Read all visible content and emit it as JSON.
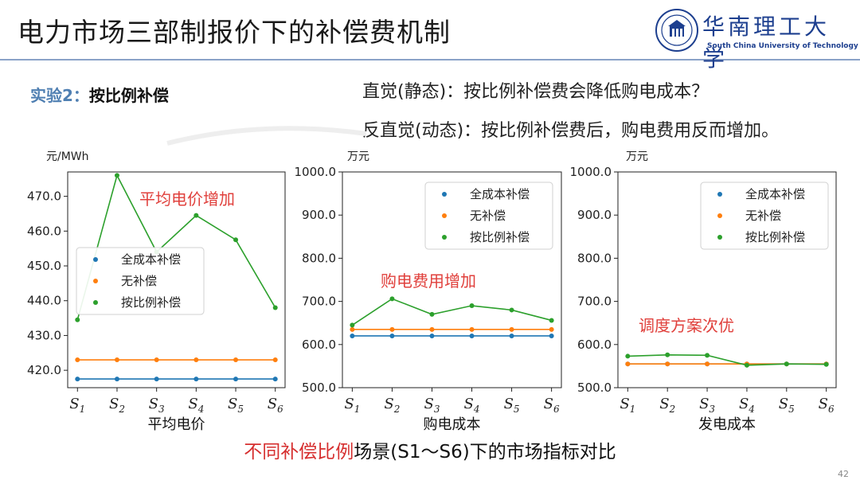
{
  "header": {
    "title": "电力市场三部制报价下的补偿费机制",
    "logo_cn": "华南理工大学",
    "logo_en": "South China University of Technology"
  },
  "experiment": {
    "label": "实验2：",
    "value": "按比例补偿"
  },
  "notes": [
    "直觉(静态)：按比例补偿费会降低购电成本？",
    "反直觉(动态)：按比例补偿费后，购电费用反而增加。"
  ],
  "caption": {
    "highlight": "不同补偿比例",
    "rest": "场景(S1～S6)下的市场指标对比"
  },
  "page_number": "42",
  "colors": {
    "series1": "#1f77b4",
    "series2": "#ff7f0e",
    "series3": "#2ca02c",
    "annotation": "#e0403c"
  },
  "chart_data": [
    {
      "type": "line",
      "unit": "元/MWh",
      "xlabel": "平均电价",
      "x_ticks": [
        "S1",
        "S2",
        "S3",
        "S4",
        "S5",
        "S6"
      ],
      "ylim": [
        415,
        477
      ],
      "y_ticks": [
        420,
        430,
        440,
        450,
        460,
        470
      ],
      "y_tick_labels": [
        "420.0",
        "430.0",
        "440.0",
        "450.0",
        "460.0",
        "470.0"
      ],
      "legend_position": "center-left",
      "annotation": "平均电价增加",
      "series": [
        {
          "name": "全成本补偿",
          "values": [
            417.5,
            417.5,
            417.5,
            417.5,
            417.5,
            417.5
          ]
        },
        {
          "name": "无补偿",
          "values": [
            423,
            423,
            423,
            423,
            423,
            423
          ]
        },
        {
          "name": "按比例补偿",
          "values": [
            434.5,
            476,
            454,
            464.5,
            457.5,
            438
          ]
        }
      ]
    },
    {
      "type": "line",
      "unit": "万元",
      "xlabel": "购电成本",
      "x_ticks": [
        "S1",
        "S2",
        "S3",
        "S4",
        "S5",
        "S6"
      ],
      "ylim": [
        500,
        1000
      ],
      "y_ticks": [
        500,
        600,
        700,
        800,
        900,
        1000
      ],
      "y_tick_labels": [
        "500.0",
        "600.0",
        "700.0",
        "800.0",
        "900.0",
        "1000.0"
      ],
      "legend_position": "top-right",
      "annotation": "购电费用增加",
      "series": [
        {
          "name": "全成本补偿",
          "values": [
            620,
            620,
            620,
            620,
            620,
            620
          ]
        },
        {
          "name": "无补偿",
          "values": [
            635,
            635,
            635,
            635,
            635,
            635
          ]
        },
        {
          "name": "按比例补偿",
          "values": [
            645,
            706,
            670,
            690,
            680,
            656
          ]
        }
      ]
    },
    {
      "type": "line",
      "unit": "万元",
      "xlabel": "发电成本",
      "x_ticks": [
        "S1",
        "S2",
        "S3",
        "S4",
        "S5",
        "S6"
      ],
      "ylim": [
        500,
        1000
      ],
      "y_ticks": [
        500,
        600,
        700,
        800,
        900,
        1000
      ],
      "y_tick_labels": [
        "500.0",
        "600.0",
        "700.0",
        "800.0",
        "900.0",
        "1000.0"
      ],
      "legend_position": "top-right",
      "annotation": "调度方案次优",
      "series": [
        {
          "name": "全成本补偿",
          "values": [
            555,
            555,
            555,
            555,
            555,
            555
          ]
        },
        {
          "name": "无补偿",
          "values": [
            555,
            555,
            555,
            555,
            555,
            555
          ]
        },
        {
          "name": "按比例补偿",
          "values": [
            573,
            576,
            575,
            552,
            555,
            554
          ]
        }
      ]
    }
  ]
}
